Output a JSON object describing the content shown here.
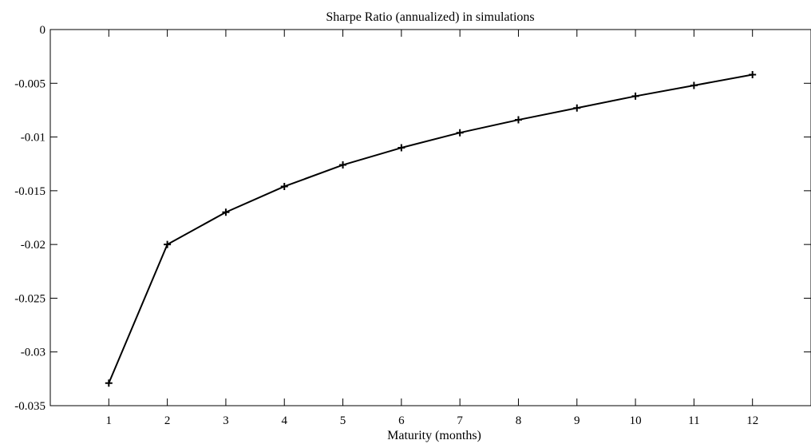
{
  "chart_data": {
    "type": "line",
    "title": "Sharpe Ratio (annualized) in simulations",
    "xlabel": "Maturity (months)",
    "ylabel": "",
    "x": [
      1,
      2,
      3,
      4,
      5,
      6,
      7,
      8,
      9,
      10,
      11,
      12
    ],
    "series": [
      {
        "values": [
          -0.0329,
          -0.02,
          -0.017,
          -0.0146,
          -0.0126,
          -0.011,
          -0.0096,
          -0.0084,
          -0.0073,
          -0.0062,
          -0.0052,
          -0.0042
        ],
        "color": "#000000",
        "marker": "plus"
      }
    ],
    "xlim": [
      0,
      13
    ],
    "ylim": [
      -0.035,
      0
    ],
    "xticks": [
      "1",
      "2",
      "3",
      "4",
      "5",
      "6",
      "7",
      "8",
      "9",
      "10",
      "11",
      "12"
    ],
    "yticks": [
      "0",
      "-0.005",
      "-0.01",
      "-0.015",
      "-0.02",
      "-0.025",
      "-0.03",
      "-0.035"
    ],
    "grid": false,
    "legend": "none",
    "box": true
  }
}
